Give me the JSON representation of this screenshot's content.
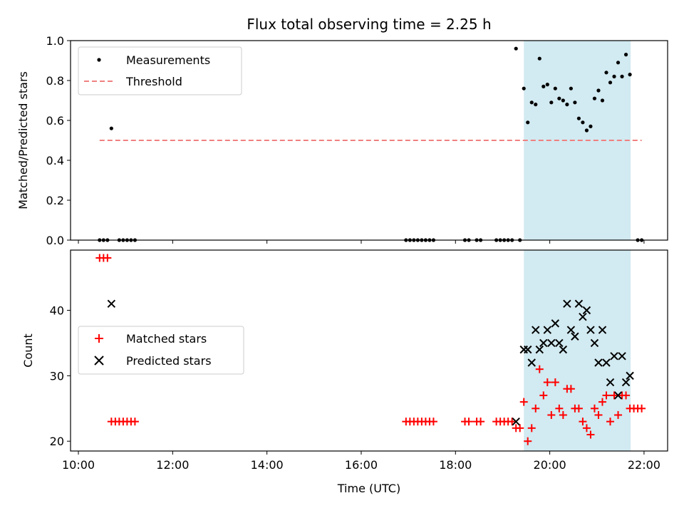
{
  "chart_data": [
    {
      "type": "scatter",
      "title": "Flux total observing time = 2.25 h",
      "xlabel": "",
      "ylabel": "Matched/Predicted stars",
      "ylim": [
        0,
        1.0
      ],
      "yticks": [
        "0.0",
        "0.2",
        "0.4",
        "0.6",
        "0.8",
        "1.0"
      ],
      "xlim": [
        "09:50",
        "22:30"
      ],
      "highlight_span": {
        "start": "19:27",
        "end": "21:43",
        "color": "#add8e6"
      },
      "legend_position": "top-left",
      "series": [
        {
          "name": "Measurements",
          "marker": "dot",
          "color": "#000000",
          "points": [
            [
              "10:27",
              0
            ],
            [
              "10:32",
              0
            ],
            [
              "10:37",
              0
            ],
            [
              "10:42",
              0.56
            ],
            [
              "10:52",
              0
            ],
            [
              "10:57",
              0
            ],
            [
              "11:02",
              0
            ],
            [
              "11:07",
              0
            ],
            [
              "11:12",
              0
            ],
            [
              "16:57",
              0
            ],
            [
              "17:02",
              0
            ],
            [
              "17:07",
              0
            ],
            [
              "17:12",
              0
            ],
            [
              "17:17",
              0
            ],
            [
              "17:22",
              0
            ],
            [
              "17:27",
              0
            ],
            [
              "17:32",
              0
            ],
            [
              "18:12",
              0
            ],
            [
              "18:17",
              0
            ],
            [
              "18:27",
              0
            ],
            [
              "18:32",
              0
            ],
            [
              "18:52",
              0
            ],
            [
              "18:57",
              0
            ],
            [
              "19:02",
              0
            ],
            [
              "19:07",
              0
            ],
            [
              "19:12",
              0
            ],
            [
              "19:17",
              0.96
            ],
            [
              "19:22",
              0
            ],
            [
              "19:27",
              0.76
            ],
            [
              "19:32",
              0.59
            ],
            [
              "19:37",
              0.69
            ],
            [
              "19:42",
              0.68
            ],
            [
              "19:47",
              0.91
            ],
            [
              "19:52",
              0.77
            ],
            [
              "19:57",
              0.78
            ],
            [
              "20:02",
              0.69
            ],
            [
              "20:07",
              0.76
            ],
            [
              "20:12",
              0.71
            ],
            [
              "20:17",
              0.7
            ],
            [
              "20:22",
              0.68
            ],
            [
              "20:27",
              0.76
            ],
            [
              "20:32",
              0.69
            ],
            [
              "20:37",
              0.61
            ],
            [
              "20:42",
              0.59
            ],
            [
              "20:47",
              0.55
            ],
            [
              "20:52",
              0.57
            ],
            [
              "20:57",
              0.71
            ],
            [
              "21:02",
              0.75
            ],
            [
              "21:07",
              0.7
            ],
            [
              "21:12",
              0.84
            ],
            [
              "21:17",
              0.79
            ],
            [
              "21:22",
              0.82
            ],
            [
              "21:27",
              0.89
            ],
            [
              "21:32",
              0.82
            ],
            [
              "21:37",
              0.93
            ],
            [
              "21:42",
              0.83
            ],
            [
              "21:52",
              0
            ],
            [
              "21:57",
              0
            ]
          ]
        },
        {
          "name": "Threshold",
          "marker": "dashed-line",
          "color": "#f08080",
          "points": [
            [
              "10:27",
              0.5
            ],
            [
              "21:57",
              0.5
            ]
          ]
        }
      ]
    },
    {
      "type": "scatter",
      "xlabel": "Time (UTC)",
      "ylabel": "Count",
      "ylim": [
        18.5,
        49.2
      ],
      "yticks": [
        "20",
        "30",
        "40"
      ],
      "xlim": [
        "09:50",
        "22:30"
      ],
      "xticks": [
        "10:00",
        "12:00",
        "14:00",
        "16:00",
        "18:00",
        "20:00",
        "22:00"
      ],
      "highlight_span": {
        "start": "19:27",
        "end": "21:43",
        "color": "#add8e6"
      },
      "legend_position": "center-left",
      "series": [
        {
          "name": "Matched stars",
          "marker": "plus",
          "color": "#ff0000",
          "points": [
            [
              "10:27",
              48
            ],
            [
              "10:32",
              48
            ],
            [
              "10:37",
              48
            ],
            [
              "10:42",
              23
            ],
            [
              "10:47",
              23
            ],
            [
              "10:52",
              23
            ],
            [
              "10:57",
              23
            ],
            [
              "11:02",
              23
            ],
            [
              "11:07",
              23
            ],
            [
              "11:12",
              23
            ],
            [
              "16:57",
              23
            ],
            [
              "17:02",
              23
            ],
            [
              "17:07",
              23
            ],
            [
              "17:12",
              23
            ],
            [
              "17:17",
              23
            ],
            [
              "17:22",
              23
            ],
            [
              "17:27",
              23
            ],
            [
              "17:32",
              23
            ],
            [
              "18:12",
              23
            ],
            [
              "18:17",
              23
            ],
            [
              "18:27",
              23
            ],
            [
              "18:32",
              23
            ],
            [
              "18:52",
              23
            ],
            [
              "18:57",
              23
            ],
            [
              "19:02",
              23
            ],
            [
              "19:07",
              23
            ],
            [
              "19:12",
              23
            ],
            [
              "19:17",
              22
            ],
            [
              "19:22",
              22
            ],
            [
              "19:27",
              26
            ],
            [
              "19:32",
              20
            ],
            [
              "19:37",
              22
            ],
            [
              "19:42",
              25
            ],
            [
              "19:47",
              31
            ],
            [
              "19:52",
              27
            ],
            [
              "19:57",
              29
            ],
            [
              "20:02",
              24
            ],
            [
              "20:07",
              29
            ],
            [
              "20:12",
              25
            ],
            [
              "20:17",
              24
            ],
            [
              "20:22",
              28
            ],
            [
              "20:27",
              28
            ],
            [
              "20:32",
              25
            ],
            [
              "20:37",
              25
            ],
            [
              "20:42",
              23
            ],
            [
              "20:47",
              22
            ],
            [
              "20:52",
              21
            ],
            [
              "20:57",
              25
            ],
            [
              "21:02",
              24
            ],
            [
              "21:07",
              26
            ],
            [
              "21:12",
              27
            ],
            [
              "21:17",
              23
            ],
            [
              "21:22",
              27
            ],
            [
              "21:27",
              24
            ],
            [
              "21:32",
              27
            ],
            [
              "21:37",
              27
            ],
            [
              "21:42",
              25
            ],
            [
              "21:47",
              25
            ],
            [
              "21:52",
              25
            ],
            [
              "21:57",
              25
            ]
          ]
        },
        {
          "name": "Predicted stars",
          "marker": "x",
          "color": "#000000",
          "points": [
            [
              "10:42",
              41
            ],
            [
              "19:17",
              23
            ],
            [
              "19:27",
              34
            ],
            [
              "19:32",
              34
            ],
            [
              "19:37",
              32
            ],
            [
              "19:42",
              37
            ],
            [
              "19:47",
              34
            ],
            [
              "19:52",
              35
            ],
            [
              "19:57",
              37
            ],
            [
              "20:02",
              35
            ],
            [
              "20:07",
              38
            ],
            [
              "20:12",
              35
            ],
            [
              "20:17",
              34
            ],
            [
              "20:22",
              41
            ],
            [
              "20:27",
              37
            ],
            [
              "20:32",
              36
            ],
            [
              "20:37",
              41
            ],
            [
              "20:42",
              39
            ],
            [
              "20:47",
              40
            ],
            [
              "20:52",
              37
            ],
            [
              "20:57",
              35
            ],
            [
              "21:02",
              32
            ],
            [
              "21:07",
              37
            ],
            [
              "21:12",
              32
            ],
            [
              "21:17",
              29
            ],
            [
              "21:22",
              33
            ],
            [
              "21:27",
              27
            ],
            [
              "21:32",
              33
            ],
            [
              "21:37",
              29
            ],
            [
              "21:42",
              30
            ]
          ]
        }
      ]
    }
  ]
}
